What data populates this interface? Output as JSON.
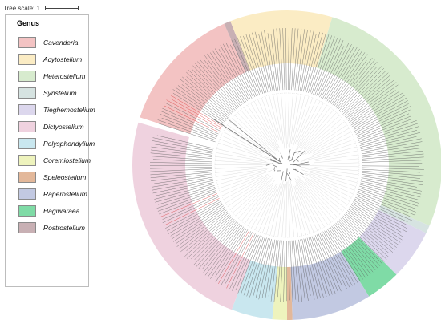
{
  "scale": {
    "label": "Tree scale: 1"
  },
  "legend": {
    "title": "Genus",
    "items": [
      {
        "label": "Cavenderia",
        "color": "#f3c3c3"
      },
      {
        "label": "Acytostelium",
        "color": "#fbecc4"
      },
      {
        "label": "Heterostelium",
        "color": "#d7ebce"
      },
      {
        "label": "Synstelium",
        "color": "#d6e3e1"
      },
      {
        "label": "Tieghemostelium",
        "color": "#dcd7ed"
      },
      {
        "label": "Dictyostelium",
        "color": "#efd2df"
      },
      {
        "label": "Polysphondylium",
        "color": "#c9e7ef"
      },
      {
        "label": "Coremiostelium",
        "color": "#eef3bd"
      },
      {
        "label": "Speleostelium",
        "color": "#e3b89a"
      },
      {
        "label": "Raperostelium",
        "color": "#c2c9e2"
      },
      {
        "label": "Hagiwaraea",
        "color": "#7fdba6"
      },
      {
        "label": "Rostrostelium",
        "color": "#c8b0b4"
      }
    ]
  },
  "sectors": [
    {
      "genus": "Cavenderia",
      "start": -72,
      "end": -24,
      "color": "#f3c3c3"
    },
    {
      "genus": "Rostrostelium",
      "start": -24,
      "end": -21.5,
      "color": "#c8b0b4"
    },
    {
      "genus": "Acytostelium",
      "start": -21.5,
      "end": 17,
      "color": "#fbecc4"
    },
    {
      "genus": "Heterostelium",
      "start": 17,
      "end": 113,
      "color": "#d7ebce"
    },
    {
      "genus": "Synstelium",
      "start": 113,
      "end": 116,
      "color": "#d6e3e1"
    },
    {
      "genus": "Tieghemostelium",
      "start": 116,
      "end": 135,
      "color": "#dcd7ed"
    },
    {
      "genus": "Hagiwaraea",
      "start": 135,
      "end": 148,
      "color": "#7fdba6"
    },
    {
      "genus": "Raperostelium",
      "start": 148,
      "end": 178,
      "color": "#c2c9e2"
    },
    {
      "genus": "Speleostelium",
      "start": 178,
      "end": 180,
      "color": "#e3b89a"
    },
    {
      "genus": "Coremiostelium",
      "start": 180,
      "end": 185.5,
      "color": "#eef3bd"
    },
    {
      "genus": "Polysphondylium",
      "start": 185.5,
      "end": 201,
      "color": "#c9e7ef"
    },
    {
      "genus": "Dictyostelium",
      "start": 201,
      "end": 286,
      "color": "#efd2df"
    }
  ],
  "colors": {
    "leaf": "#5a5a5a",
    "highlight": "#d63333",
    "branch": "#777777"
  }
}
